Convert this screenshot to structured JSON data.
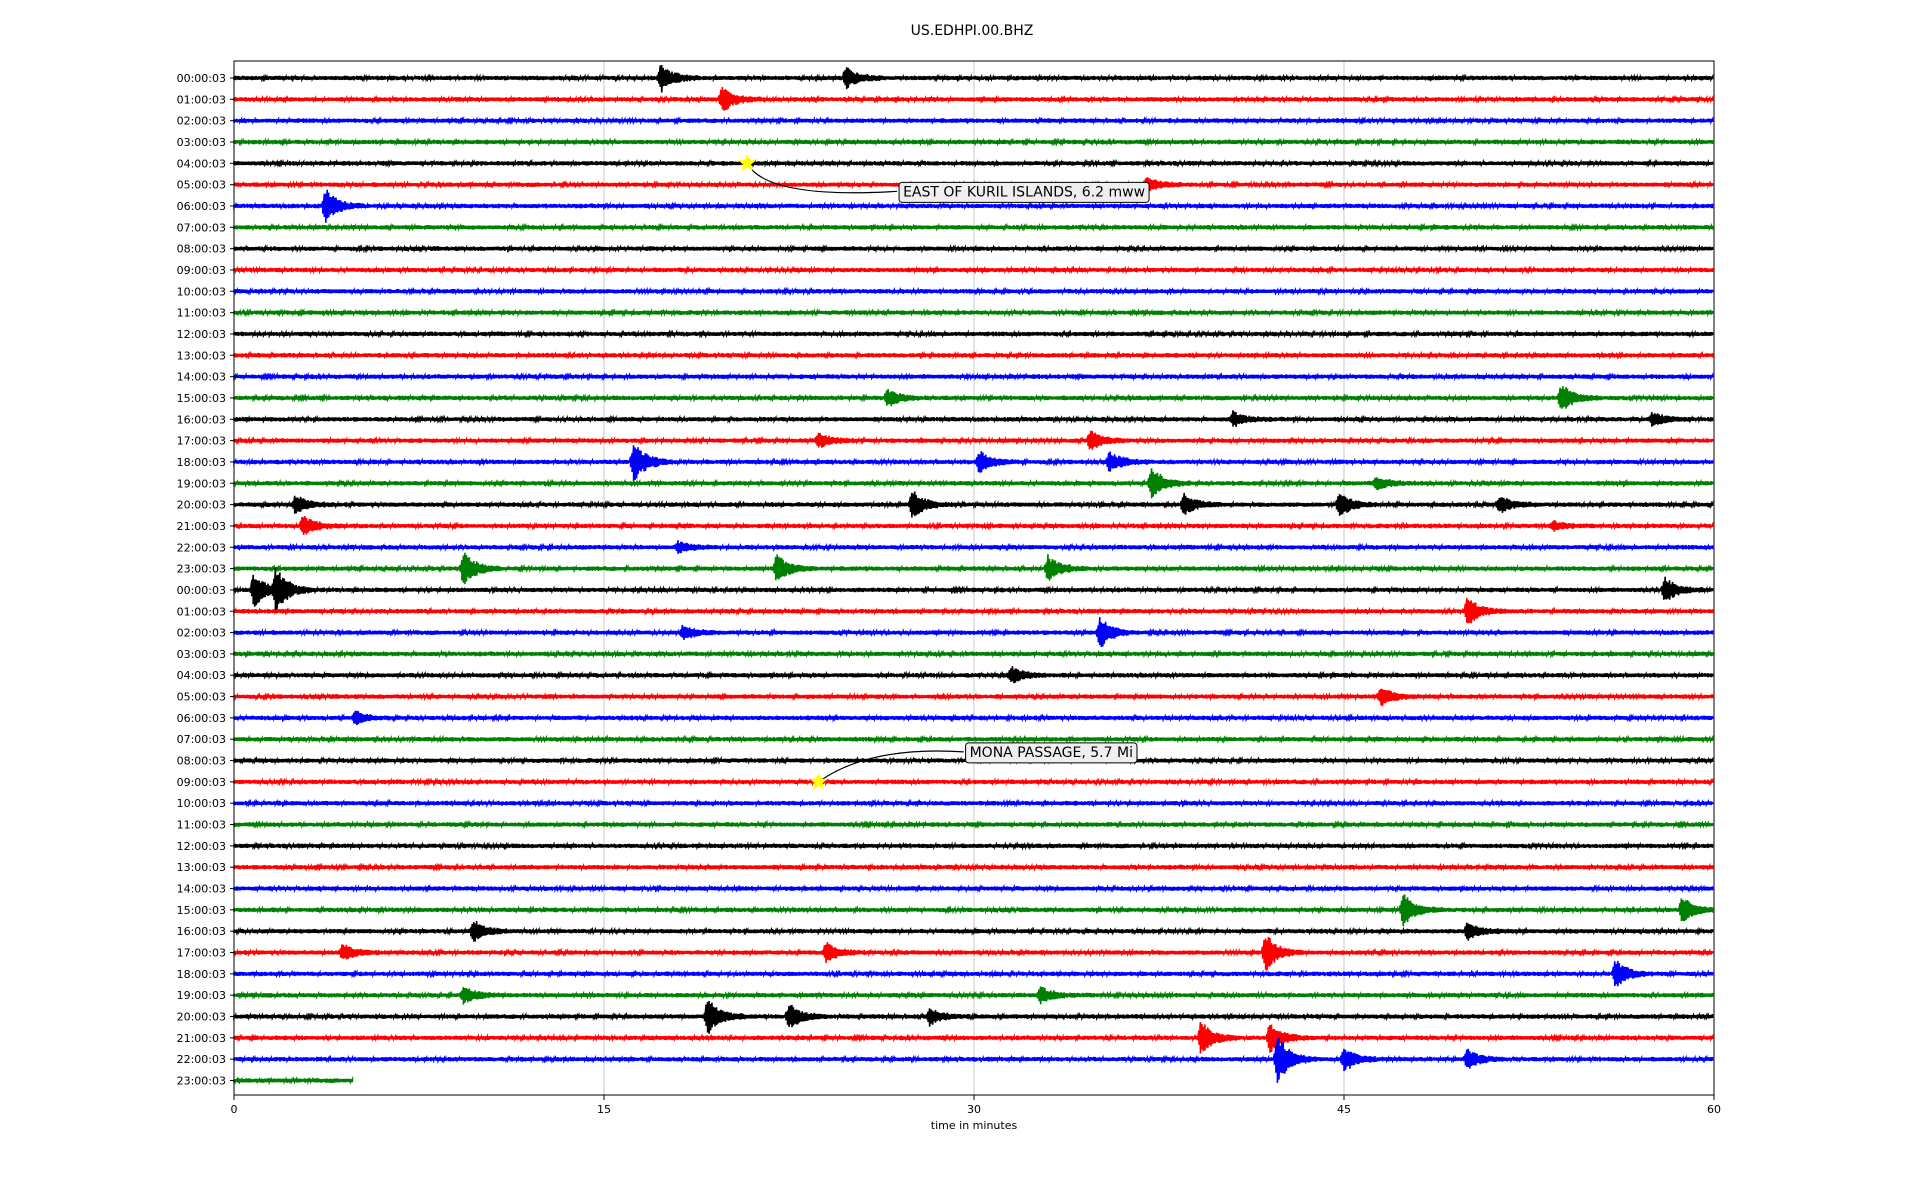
{
  "chart_data": {
    "type": "line",
    "title": "US.EDHPI.00.BHZ",
    "xlabel": "time in minutes",
    "xlim": [
      0,
      60
    ],
    "x_ticks": [
      0,
      15,
      30,
      45,
      60
    ],
    "grid": "vertical",
    "colors": [
      "#000000",
      "#ff0000",
      "#0000ff",
      "#008000"
    ],
    "row_labels": [
      "00:00:03",
      "01:00:03",
      "02:00:03",
      "03:00:03",
      "04:00:03",
      "05:00:03",
      "06:00:03",
      "07:00:03",
      "08:00:03",
      "09:00:03",
      "10:00:03",
      "11:00:03",
      "12:00:03",
      "13:00:03",
      "14:00:03",
      "15:00:03",
      "16:00:03",
      "17:00:03",
      "18:00:03",
      "19:00:03",
      "20:00:03",
      "21:00:03",
      "22:00:03",
      "23:00:03",
      "00:00:03",
      "01:00:03",
      "02:00:03",
      "03:00:03",
      "04:00:03",
      "05:00:03",
      "06:00:03",
      "07:00:03",
      "08:00:03",
      "09:00:03",
      "10:00:03",
      "11:00:03",
      "12:00:03",
      "13:00:03",
      "14:00:03",
      "15:00:03",
      "16:00:03",
      "17:00:03",
      "18:00:03",
      "19:00:03",
      "20:00:03",
      "21:00:03",
      "22:00:03",
      "23:00:03"
    ],
    "last_row_end_minute": 4.8,
    "events": [
      {
        "row": 0,
        "minute": 17.3,
        "amp": 1.0
      },
      {
        "row": 0,
        "minute": 24.8,
        "amp": 0.8
      },
      {
        "row": 1,
        "minute": 19.8,
        "amp": 0.9
      },
      {
        "row": 5,
        "minute": 37.0,
        "amp": 0.5
      },
      {
        "row": 6,
        "minute": 3.7,
        "amp": 1.2
      },
      {
        "row": 15,
        "minute": 26.5,
        "amp": 0.6
      },
      {
        "row": 15,
        "minute": 53.8,
        "amp": 1.0
      },
      {
        "row": 16,
        "minute": 40.5,
        "amp": 0.5
      },
      {
        "row": 16,
        "minute": 57.5,
        "amp": 0.5
      },
      {
        "row": 17,
        "minute": 23.7,
        "amp": 0.5
      },
      {
        "row": 17,
        "minute": 34.7,
        "amp": 0.7
      },
      {
        "row": 18,
        "minute": 16.2,
        "amp": 1.5
      },
      {
        "row": 18,
        "minute": 30.2,
        "amp": 0.8
      },
      {
        "row": 18,
        "minute": 35.5,
        "amp": 0.7
      },
      {
        "row": 19,
        "minute": 37.2,
        "amp": 1.2
      },
      {
        "row": 19,
        "minute": 46.3,
        "amp": 0.5
      },
      {
        "row": 20,
        "minute": 2.5,
        "amp": 0.7
      },
      {
        "row": 20,
        "minute": 27.5,
        "amp": 1.0
      },
      {
        "row": 20,
        "minute": 38.5,
        "amp": 0.8
      },
      {
        "row": 20,
        "minute": 44.8,
        "amp": 0.9
      },
      {
        "row": 20,
        "minute": 51.3,
        "amp": 0.6
      },
      {
        "row": 21,
        "minute": 2.8,
        "amp": 0.7
      },
      {
        "row": 21,
        "minute": 53.5,
        "amp": 0.3
      },
      {
        "row": 22,
        "minute": 18.0,
        "amp": 0.4
      },
      {
        "row": 23,
        "minute": 9.3,
        "amp": 1.2
      },
      {
        "row": 23,
        "minute": 22.0,
        "amp": 1.0
      },
      {
        "row": 23,
        "minute": 33.0,
        "amp": 0.9
      },
      {
        "row": 24,
        "minute": 0.8,
        "amp": 1.2
      },
      {
        "row": 24,
        "minute": 1.7,
        "amp": 1.5
      },
      {
        "row": 24,
        "minute": 58.0,
        "amp": 0.9
      },
      {
        "row": 25,
        "minute": 50.0,
        "amp": 1.0
      },
      {
        "row": 26,
        "minute": 18.2,
        "amp": 0.5
      },
      {
        "row": 26,
        "minute": 35.1,
        "amp": 1.1
      },
      {
        "row": 28,
        "minute": 31.5,
        "amp": 0.6
      },
      {
        "row": 29,
        "minute": 46.5,
        "amp": 0.7
      },
      {
        "row": 30,
        "minute": 4.9,
        "amp": 0.5
      },
      {
        "row": 39,
        "minute": 47.4,
        "amp": 1.1
      },
      {
        "row": 39,
        "minute": 58.7,
        "amp": 0.9
      },
      {
        "row": 40,
        "minute": 9.7,
        "amp": 0.8
      },
      {
        "row": 40,
        "minute": 50.0,
        "amp": 0.6
      },
      {
        "row": 41,
        "minute": 4.4,
        "amp": 0.6
      },
      {
        "row": 41,
        "minute": 24.0,
        "amp": 0.7
      },
      {
        "row": 41,
        "minute": 41.8,
        "amp": 1.4
      },
      {
        "row": 42,
        "minute": 56.0,
        "amp": 1.0
      },
      {
        "row": 43,
        "minute": 9.3,
        "amp": 0.6
      },
      {
        "row": 43,
        "minute": 32.7,
        "amp": 0.6
      },
      {
        "row": 44,
        "minute": 19.2,
        "amp": 1.3
      },
      {
        "row": 44,
        "minute": 22.5,
        "amp": 0.9
      },
      {
        "row": 44,
        "minute": 28.2,
        "amp": 0.6
      },
      {
        "row": 45,
        "minute": 39.2,
        "amp": 1.2
      },
      {
        "row": 45,
        "minute": 42.0,
        "amp": 1.1
      },
      {
        "row": 46,
        "minute": 42.3,
        "amp": 1.8
      },
      {
        "row": 46,
        "minute": 45.0,
        "amp": 0.9
      },
      {
        "row": 46,
        "minute": 50.0,
        "amp": 0.7
      }
    ],
    "annotations": [
      {
        "text": "EAST OF KURIL ISLANDS, 6.2 mww",
        "row": 4,
        "minute": 20.8
      },
      {
        "text": "MONA PASSAGE, 5.7 Mi",
        "row": 33,
        "minute": 23.7
      }
    ]
  }
}
